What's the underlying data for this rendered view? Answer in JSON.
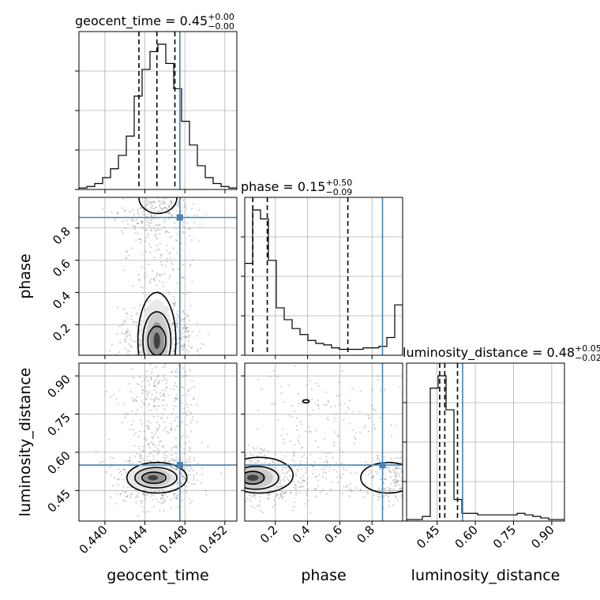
{
  "chart_data": {
    "type": "scatter",
    "subtype": "corner-plot",
    "parameters": [
      "geocent_time",
      "phase",
      "luminosity_distance"
    ],
    "axis_labels": {
      "geocent_time": "geocent_time",
      "phase": "phase",
      "luminosity_distance": "luminosity_distance"
    },
    "ranges": {
      "geocent_time": [
        0.4374,
        0.4532
      ],
      "phase": [
        0.01,
        0.99
      ],
      "luminosity_distance": [
        0.33,
        0.95
      ]
    },
    "truths": {
      "geocent_time": 0.4475,
      "phase": 0.865,
      "luminosity_distance": 0.55
    },
    "ticks": {
      "geocent_time": {
        "values": [
          0.44,
          0.444,
          0.448,
          0.452
        ],
        "labels": [
          "0.440",
          "0.444",
          "0.448",
          "0.452"
        ]
      },
      "phase": {
        "values": [
          0.2,
          0.4,
          0.6,
          0.8
        ],
        "labels": [
          "0.2",
          "0.4",
          "0.6",
          "0.8"
        ]
      },
      "luminosity_distance": {
        "values": [
          0.45,
          0.6,
          0.75,
          0.9
        ],
        "labels": [
          "0.45",
          "0.60",
          "0.75",
          "0.90"
        ]
      }
    },
    "marginals": [
      {
        "parameter": "geocent_time",
        "title": {
          "text": "geocent_time = 0.45",
          "plus": "+0.00",
          "minus": "−0.00"
        },
        "quantiles": [
          0.4434,
          0.4452,
          0.447
        ],
        "bins": [
          0.4374,
          0.43819,
          0.43898,
          0.43977,
          0.44056,
          0.44135,
          0.44214,
          0.44293,
          0.44372,
          0.44451,
          0.4453,
          0.44609,
          0.44688,
          0.44767,
          0.44846,
          0.44925,
          0.45004,
          0.45083,
          0.45162,
          0.45241,
          0.4532
        ],
        "counts": [
          0.01,
          0.02,
          0.04,
          0.08,
          0.14,
          0.23,
          0.36,
          0.63,
          0.81,
          0.93,
          0.98,
          0.85,
          0.68,
          0.46,
          0.3,
          0.16,
          0.08,
          0.04,
          0.02,
          0.01
        ]
      },
      {
        "parameter": "phase",
        "title": {
          "text": "phase = 0.15",
          "plus": "+0.50",
          "minus": "−0.09"
        },
        "quantiles": [
          0.06,
          0.15,
          0.65
        ],
        "bins": [
          0.01,
          0.059,
          0.108,
          0.157,
          0.206,
          0.255,
          0.304,
          0.353,
          0.402,
          0.451,
          0.5,
          0.549,
          0.598,
          0.647,
          0.696,
          0.745,
          0.794,
          0.843,
          0.892,
          0.941,
          0.99
        ],
        "counts": [
          0.62,
          0.98,
          0.92,
          0.64,
          0.32,
          0.24,
          0.18,
          0.14,
          0.1,
          0.08,
          0.07,
          0.05,
          0.04,
          0.04,
          0.04,
          0.05,
          0.05,
          0.06,
          0.12,
          0.34
        ]
      },
      {
        "parameter": "luminosity_distance",
        "title": {
          "text": "luminosity_distance = 0.48",
          "plus": "+0.05",
          "minus": "−0.02"
        },
        "quantiles": [
          0.46,
          0.48,
          0.53
        ],
        "bins": [
          0.33,
          0.361,
          0.392,
          0.423,
          0.454,
          0.485,
          0.516,
          0.547,
          0.578,
          0.609,
          0.64,
          0.671,
          0.702,
          0.733,
          0.764,
          0.795,
          0.826,
          0.857,
          0.888,
          0.919,
          0.95
        ],
        "counts": [
          0.01,
          0.01,
          0.03,
          0.86,
          0.94,
          0.72,
          0.14,
          0.05,
          0.05,
          0.04,
          0.04,
          0.04,
          0.04,
          0.04,
          0.05,
          0.04,
          0.03,
          0.02,
          0.01,
          0.01
        ]
      }
    ],
    "joint": [
      {
        "x": "geocent_time",
        "y": "phase",
        "cloud_centers": [
          [
            0.4453,
            0.1
          ],
          [
            0.4453,
            0.9
          ],
          [
            0.4455,
            0.5
          ]
        ],
        "cloud_spread": [
          [
            0.0019,
            0.1
          ],
          [
            0.0019,
            0.08
          ],
          [
            0.0016,
            0.28
          ]
        ],
        "cloud_weights": [
          0.55,
          0.25,
          0.2
        ],
        "density_peak": [
          0.4452,
          0.1
        ],
        "contours": [
          {
            "cx": 0.4452,
            "cy": 0.1,
            "rx": 0.0019,
            "ry": 0.3
          },
          {
            "cx": 0.4452,
            "cy": 0.1,
            "rx": 0.0014,
            "ry": 0.18
          },
          {
            "cx": 0.4452,
            "cy": 0.1,
            "rx": 0.0009,
            "ry": 0.09
          },
          {
            "cx": 0.4453,
            "cy": 0.99,
            "rx": 0.0019,
            "ry": 0.1
          }
        ]
      },
      {
        "x": "geocent_time",
        "y": "luminosity_distance",
        "cloud_centers": [
          [
            0.4452,
            0.5
          ],
          [
            0.4455,
            0.78
          ]
        ],
        "cloud_spread": [
          [
            0.0018,
            0.05
          ],
          [
            0.002,
            0.12
          ]
        ],
        "cloud_weights": [
          0.65,
          0.35
        ],
        "density_peak": [
          0.4448,
          0.5
        ],
        "contours": [
          {
            "cx": 0.4452,
            "cy": 0.5,
            "rx": 0.003,
            "ry": 0.06
          },
          {
            "cx": 0.4451,
            "cy": 0.5,
            "rx": 0.0021,
            "ry": 0.04
          },
          {
            "cx": 0.4449,
            "cy": 0.5,
            "rx": 0.0012,
            "ry": 0.022
          }
        ]
      },
      {
        "x": "phase",
        "y": "luminosity_distance",
        "cloud_centers": [
          [
            0.08,
            0.5
          ],
          [
            0.95,
            0.5
          ],
          [
            0.5,
            0.75
          ],
          [
            0.45,
            0.5
          ]
        ],
        "cloud_spread": [
          [
            0.12,
            0.05
          ],
          [
            0.07,
            0.05
          ],
          [
            0.28,
            0.14
          ],
          [
            0.2,
            0.05
          ]
        ],
        "cloud_weights": [
          0.45,
          0.2,
          0.2,
          0.15
        ],
        "density_peak": [
          0.06,
          0.5
        ],
        "contours": [
          {
            "cx": 0.1,
            "cy": 0.51,
            "rx": 0.21,
            "ry": 0.07
          },
          {
            "cx": 0.08,
            "cy": 0.5,
            "rx": 0.14,
            "ry": 0.045
          },
          {
            "cx": 0.06,
            "cy": 0.5,
            "rx": 0.07,
            "ry": 0.025
          },
          {
            "cx": 0.9,
            "cy": 0.5,
            "rx": 0.17,
            "ry": 0.06
          },
          {
            "cx": 0.39,
            "cy": 0.8,
            "rx": 0.02,
            "ry": 0.006
          }
        ]
      }
    ]
  }
}
